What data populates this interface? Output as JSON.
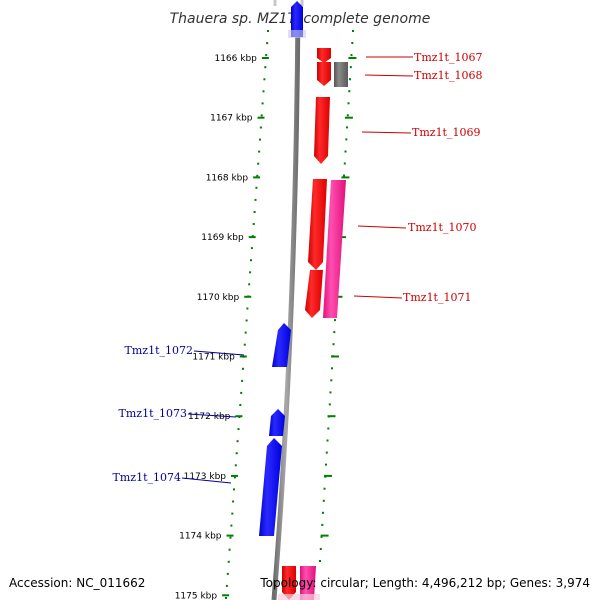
{
  "title": "Thauera sp. MZ1T, complete genome",
  "accession": "Accession: NC_011662",
  "topology": "Topology: circular; Length: 4,496,212 bp; Genes: 3,974",
  "colors": {
    "backbone": "#808080",
    "dots": "#008000",
    "forward_gene": "#ff0000",
    "forward_gene_alt": "#ff1493",
    "reverse_gene": "#0000ff",
    "other_gene": "#696969",
    "forward_label": "#cc0000",
    "reverse_label": "#000099"
  },
  "kbp_ticks": [
    {
      "kbp": 1166,
      "label": "1166 kbp"
    },
    {
      "kbp": 1167,
      "label": "1167 kbp"
    },
    {
      "kbp": 1168,
      "label": "1168 kbp"
    },
    {
      "kbp": 1169,
      "label": "1169 kbp"
    },
    {
      "kbp": 1170,
      "label": "1170 kbp"
    },
    {
      "kbp": 1171,
      "label": "1171 kbp"
    },
    {
      "kbp": 1172,
      "label": "1172 kbp"
    },
    {
      "kbp": 1173,
      "label": "1173 kbp"
    },
    {
      "kbp": 1174,
      "label": "1174 kbp"
    },
    {
      "kbp": 1175,
      "label": "1175 kbp"
    }
  ],
  "genes": [
    {
      "name": "Tmz1t_1067",
      "strand": "+",
      "color": "#ff0000"
    },
    {
      "name": "Tmz1t_1068",
      "strand": "+",
      "color": "#ff0000"
    },
    {
      "name": "Tmz1t_1069",
      "strand": "+",
      "color": "#ff0000"
    },
    {
      "name": "Tmz1t_1070",
      "strand": "+",
      "color": "#ff0000"
    },
    {
      "name": "Tmz1t_1071",
      "strand": "+",
      "color": "#ff0000"
    },
    {
      "name": "Tmz1t_1072",
      "strand": "-",
      "color": "#0000ff"
    },
    {
      "name": "Tmz1t_1073",
      "strand": "-",
      "color": "#0000ff"
    },
    {
      "name": "Tmz1t_1074",
      "strand": "-",
      "color": "#0000ff"
    }
  ]
}
